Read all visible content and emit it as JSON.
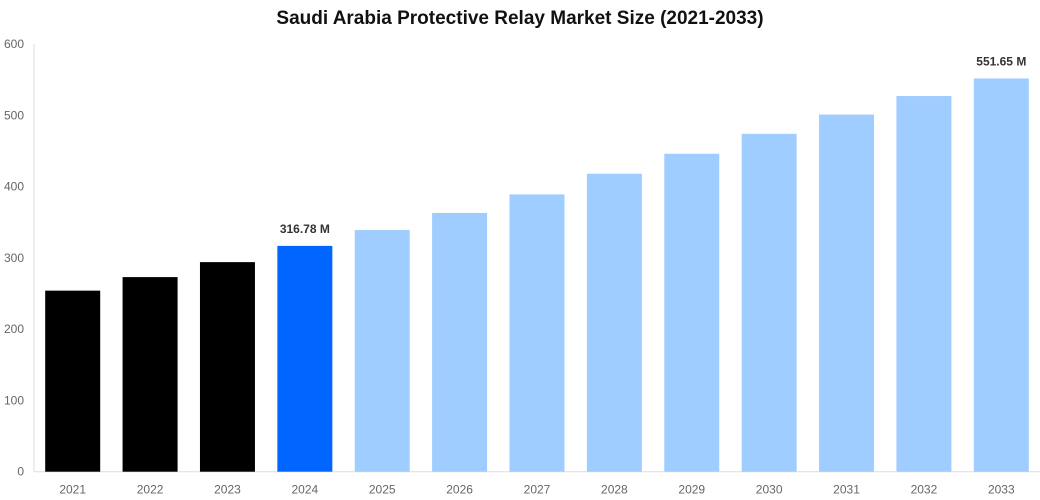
{
  "chart_data": {
    "type": "bar",
    "title": "Saudi Arabia Protective Relay Market Size (2021-2033)",
    "xlabel": "",
    "ylabel": "",
    "ylim": [
      0,
      600
    ],
    "yticks": [
      0,
      100,
      200,
      300,
      400,
      500,
      600
    ],
    "grid": false,
    "categories": [
      "2021",
      "2022",
      "2023",
      "2024",
      "2025",
      "2026",
      "2027",
      "2028",
      "2029",
      "2030",
      "2031",
      "2032",
      "2033"
    ],
    "values": [
      254,
      273,
      294,
      316.78,
      339,
      363,
      389,
      418,
      446,
      474,
      501,
      527,
      551.65
    ],
    "colors": [
      "#000000",
      "#000000",
      "#000000",
      "#0066ff",
      "#a0cdff",
      "#a0cdff",
      "#a0cdff",
      "#a0cdff",
      "#a0cdff",
      "#a0cdff",
      "#a0cdff",
      "#a0cdff",
      "#a0cdff"
    ],
    "data_labels": {
      "3": "316.78 M",
      "12": "551.65 M"
    }
  }
}
